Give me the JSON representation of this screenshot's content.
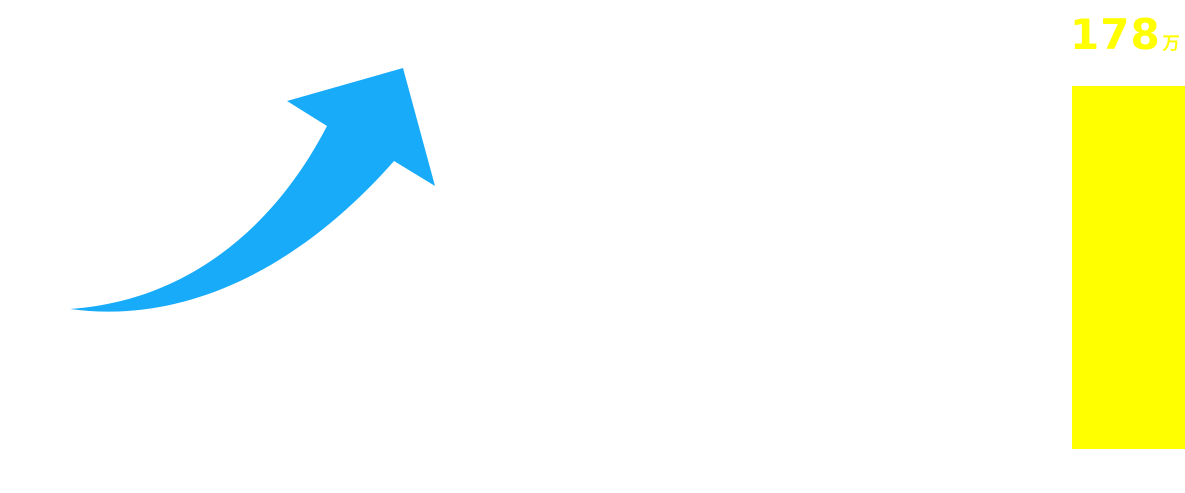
{
  "colors": {
    "arrow": "#18abf9",
    "bar": "#ffff00",
    "label": "#ffff00",
    "background": "#ffffff"
  },
  "icons": {
    "arrow": "trend-up-arrow-icon"
  },
  "chart_data": {
    "type": "bar",
    "categories": [
      ""
    ],
    "values": [
      178
    ],
    "data_labels": [
      {
        "value": "178",
        "unit": "万"
      }
    ],
    "unit": "万",
    "ylim": [
      0,
      178
    ],
    "grid": false,
    "title": "",
    "xlabel": "",
    "ylabel": ""
  }
}
